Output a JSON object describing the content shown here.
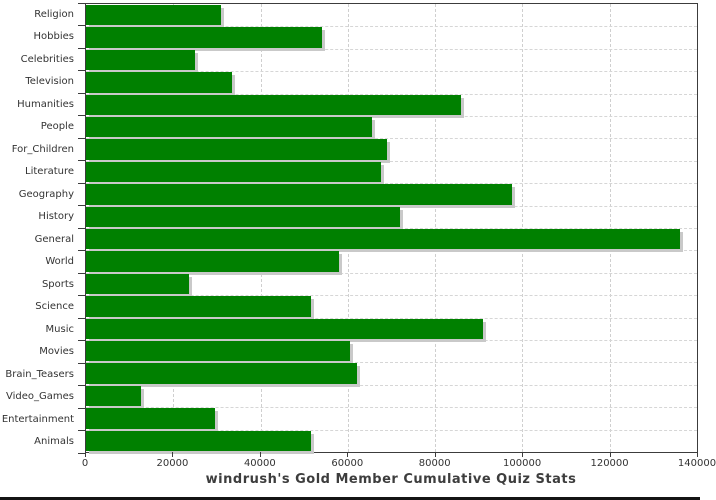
{
  "chart_data": {
    "type": "bar",
    "orientation": "horizontal",
    "title": "windrush's Gold Member Cumulative Quiz Stats",
    "xlabel": "",
    "ylabel": "",
    "categories": [
      "Religion",
      "Hobbies",
      "Celebrities",
      "Television",
      "Humanities",
      "People",
      "For_Children",
      "Literature",
      "Geography",
      "History",
      "General",
      "World",
      "Sports",
      "Science",
      "Music",
      "Movies",
      "Brain_Teasers",
      "Video_Games",
      "Entertainment",
      "Animals"
    ],
    "values": [
      31000,
      54000,
      25000,
      33500,
      86000,
      65500,
      69000,
      67500,
      97500,
      72000,
      136000,
      58000,
      23500,
      51500,
      91000,
      60500,
      62000,
      12500,
      29500,
      51500
    ],
    "xlim": [
      0,
      140000
    ],
    "xticks": [
      0,
      20000,
      40000,
      60000,
      80000,
      100000,
      120000,
      140000
    ],
    "xtick_labels": [
      "0",
      "20000",
      "40000",
      "60000",
      "80000",
      "100000",
      "120000",
      "140000"
    ],
    "grid": "dashed-both-axes",
    "legend": "none",
    "bar_color": "#008000",
    "bar_shadow_color": "#c9c9c9",
    "gridline_color": "#cfcfcf",
    "axis_color": "#3c3c3c",
    "label_color": "#333333",
    "title_color": "#3d3d3d",
    "background_color": "#ffffff"
  }
}
